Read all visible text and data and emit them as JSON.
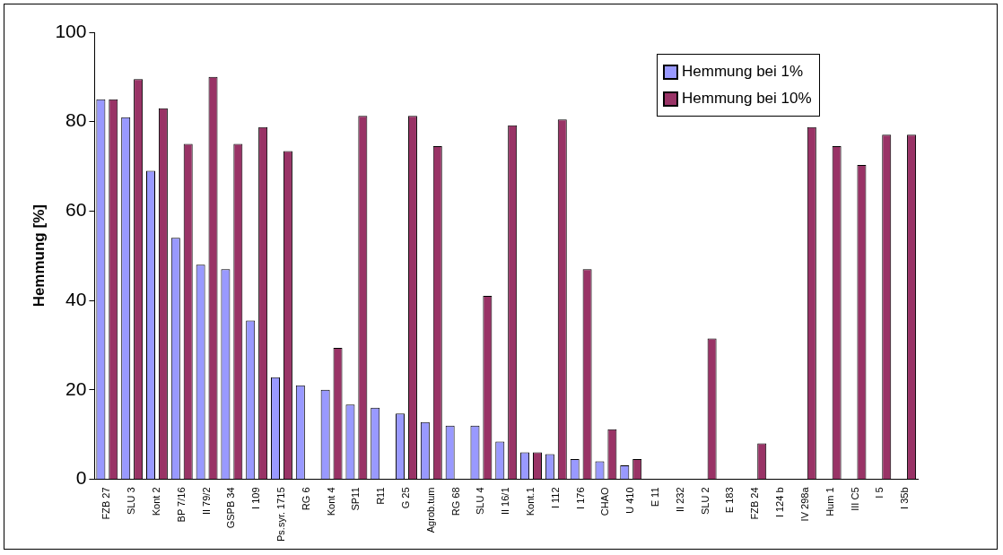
{
  "chart_data": {
    "type": "bar",
    "ylabel": "Hemmung [%]",
    "categories": [
      "FZB 27",
      "SLU 3",
      "Kont 2",
      "BP 7/16",
      "II 79/2",
      "GSPB 34",
      "I 109",
      "Ps.syr. 1715",
      "RG 6",
      "Kont 4",
      "SP11",
      "R11",
      "G 25",
      "Agrob.tum",
      "RG 68",
      "SLU 4",
      "II 16/1",
      "Kont.1",
      "I 112",
      "I 176",
      "CHAO",
      "U 410",
      "E 11",
      "II 232",
      "SLU 2",
      "E 183",
      "FZB 24",
      "I 124 b",
      "IV 298a",
      "Hum 1",
      "III C5",
      "I 5",
      "I 35b"
    ],
    "series": [
      {
        "name": "Hemmung bei 1%",
        "color": "#9999ff",
        "values": [
          85,
          81,
          69,
          54,
          48,
          47,
          35.5,
          22.8,
          21,
          20,
          16.7,
          16,
          14.7,
          12.8,
          12,
          12,
          8.4,
          6,
          5.6,
          4.5,
          4,
          3.1,
          null,
          null,
          null,
          null,
          null,
          null,
          null,
          null,
          null,
          null,
          null
        ]
      },
      {
        "name": "Hemmung bei 10%",
        "color": "#993366",
        "values": [
          85,
          89.5,
          83,
          75,
          90,
          75,
          78.8,
          73.4,
          null,
          29.4,
          81.3,
          null,
          81.3,
          74.5,
          null,
          41,
          79.2,
          6,
          80.5,
          47,
          11.2,
          4.5,
          null,
          null,
          31.5,
          null,
          8,
          null,
          78.8,
          74.5,
          70.3,
          77.1,
          77.1
        ]
      }
    ],
    "ylim": [
      0,
      100
    ],
    "yticks": [
      0,
      20,
      40,
      60,
      80,
      100
    ],
    "grid": false,
    "legend": "top right"
  }
}
